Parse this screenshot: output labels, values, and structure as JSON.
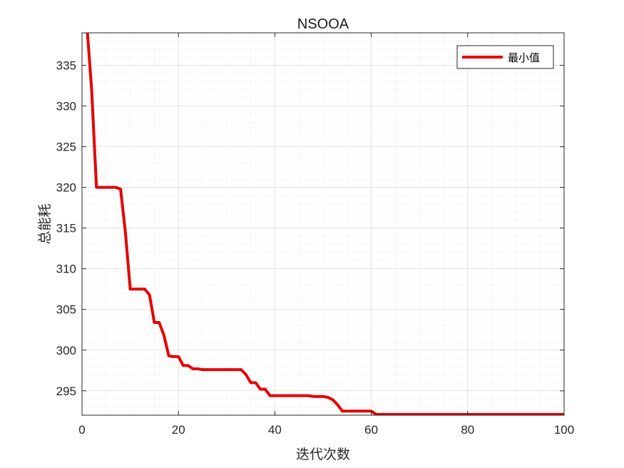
{
  "chart_data": {
    "type": "line",
    "title": "NSOOA",
    "xlabel": "迭代次数",
    "ylabel": "总能耗",
    "xlim": [
      0,
      100
    ],
    "ylim": [
      292,
      339
    ],
    "xticks": [
      0,
      20,
      40,
      60,
      80,
      100
    ],
    "yticks": [
      295,
      300,
      305,
      310,
      315,
      320,
      325,
      330,
      335
    ],
    "grid": true,
    "minor_grid": true,
    "legend_position": "top-right",
    "series": [
      {
        "name": "最小值",
        "color": "#e60000",
        "x": [
          1,
          2,
          3,
          4,
          5,
          6,
          7,
          8,
          9,
          10,
          11,
          12,
          13,
          14,
          15,
          16,
          17,
          18,
          19,
          20,
          21,
          22,
          23,
          24,
          25,
          26,
          27,
          28,
          29,
          30,
          31,
          32,
          33,
          34,
          35,
          36,
          37,
          38,
          39,
          40,
          41,
          42,
          43,
          44,
          45,
          46,
          47,
          48,
          49,
          50,
          51,
          52,
          53,
          54,
          55,
          56,
          57,
          58,
          59,
          60,
          61,
          62,
          70,
          80,
          90,
          100
        ],
        "y": [
          340,
          332,
          320,
          320,
          320,
          320,
          320,
          319.8,
          314.5,
          307.5,
          307.5,
          307.5,
          307.5,
          306.8,
          303.4,
          303.4,
          301.8,
          299.3,
          299.2,
          299.2,
          298.1,
          298.1,
          297.7,
          297.7,
          297.6,
          297.6,
          297.6,
          297.6,
          297.6,
          297.6,
          297.6,
          297.6,
          297.6,
          297,
          296,
          296,
          295.2,
          295.2,
          294.4,
          294.4,
          294.4,
          294.4,
          294.4,
          294.4,
          294.4,
          294.4,
          294.4,
          294.3,
          294.3,
          294.3,
          294.2,
          293.9,
          293.3,
          292.5,
          292.5,
          292.5,
          292.5,
          292.5,
          292.5,
          292.5,
          292.1,
          292.1,
          292.1,
          292.1,
          292.1,
          292.1
        ]
      }
    ]
  }
}
